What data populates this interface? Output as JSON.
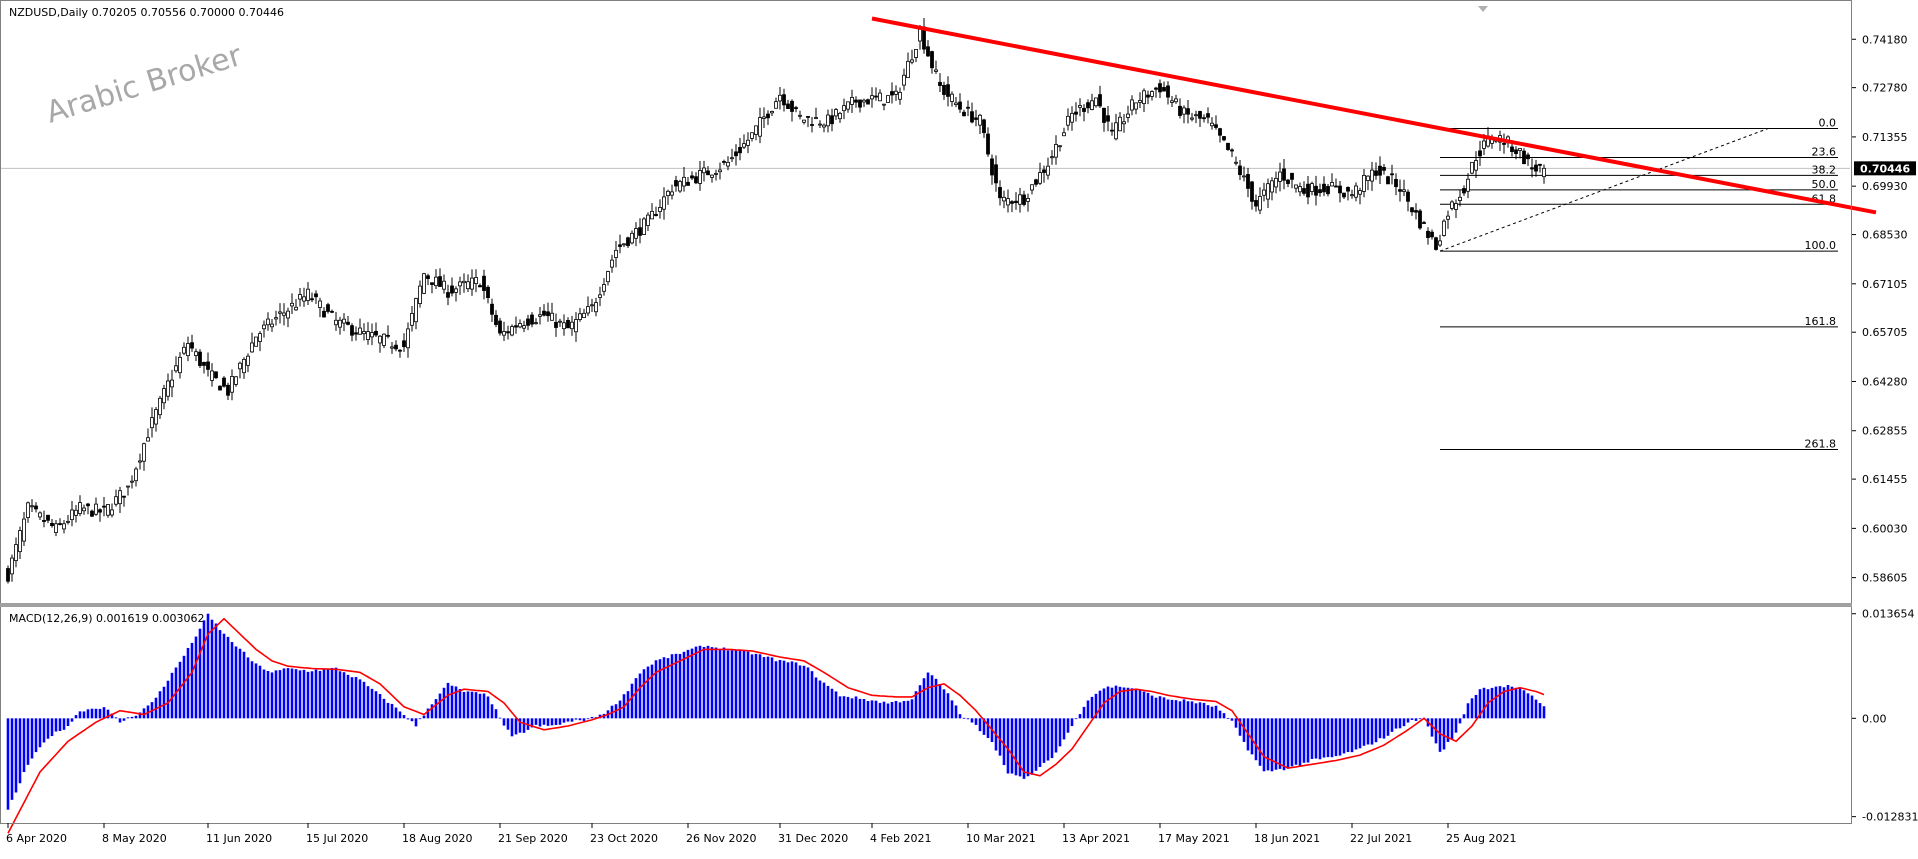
{
  "header": {
    "symbol_line": "NZDUSD,Daily  0.70205 0.70556 0.70000 0.70446"
  },
  "watermark": "Arabic Broker",
  "colors": {
    "background": "#ffffff",
    "candle": "#000000",
    "trendline": "#ff0000",
    "macd_histogram": "#0000ff",
    "macd_signal": "#ff0000",
    "price_tag_bg": "#000000",
    "price_tag_text": "#ffffff",
    "fib_line": "#000000",
    "crosshair": "#c0c0c0"
  },
  "chart_data": [
    {
      "type": "candlestick",
      "title": "NZDUSD,Daily",
      "ohlc_last": {
        "open": 0.70205,
        "high": 0.70556,
        "low": 0.7,
        "close": 0.70446
      },
      "current_price_label": "0.70446",
      "ylim": [
        0.579,
        0.752
      ],
      "y_tick_labels": [
        "0.74180",
        "0.72780",
        "0.71355",
        "0.69930",
        "0.68530",
        "0.67105",
        "0.65705",
        "0.64280",
        "0.62855",
        "0.61455",
        "0.60030",
        "0.58605"
      ],
      "y_ticks": [
        0.7418,
        0.7278,
        0.71355,
        0.6993,
        0.6853,
        0.67105,
        0.65705,
        0.6428,
        0.62855,
        0.61455,
        0.6003,
        0.58605
      ],
      "x_tick_labels": [
        "6 Apr 2020",
        "8 May 2020",
        "11 Jun 2020",
        "15 Jul 2020",
        "18 Aug 2020",
        "21 Sep 2020",
        "23 Oct 2020",
        "26 Nov 2020",
        "31 Dec 2020",
        "4 Feb 2021",
        "10 Mar 2021",
        "13 Apr 2021",
        "17 May 2021",
        "18 Jun 2021",
        "22 Jul 2021",
        "25 Aug 2021"
      ],
      "x_tick_bar_index": [
        0,
        24,
        50,
        75,
        99,
        123,
        146,
        170,
        193,
        216,
        240,
        264,
        288,
        312,
        336,
        360
      ],
      "bar_count": 385,
      "price_path": [
        [
          0,
          0.587
        ],
        [
          5,
          0.606
        ],
        [
          12,
          0.6
        ],
        [
          18,
          0.606
        ],
        [
          24,
          0.605
        ],
        [
          30,
          0.612
        ],
        [
          35,
          0.628
        ],
        [
          40,
          0.642
        ],
        [
          45,
          0.654
        ],
        [
          50,
          0.645
        ],
        [
          55,
          0.64
        ],
        [
          62,
          0.656
        ],
        [
          68,
          0.662
        ],
        [
          75,
          0.668
        ],
        [
          82,
          0.66
        ],
        [
          90,
          0.656
        ],
        [
          99,
          0.653
        ],
        [
          104,
          0.674
        ],
        [
          110,
          0.669
        ],
        [
          118,
          0.672
        ],
        [
          123,
          0.656
        ],
        [
          128,
          0.66
        ],
        [
          134,
          0.662
        ],
        [
          140,
          0.658
        ],
        [
          146,
          0.664
        ],
        [
          152,
          0.681
        ],
        [
          160,
          0.689
        ],
        [
          166,
          0.699
        ],
        [
          172,
          0.702
        ],
        [
          180,
          0.706
        ],
        [
          186,
          0.714
        ],
        [
          193,
          0.726
        ],
        [
          198,
          0.719
        ],
        [
          205,
          0.718
        ],
        [
          212,
          0.724
        ],
        [
          222,
          0.725
        ],
        [
          228,
          0.744
        ],
        [
          233,
          0.728
        ],
        [
          238,
          0.722
        ],
        [
          243,
          0.718
        ],
        [
          248,
          0.695
        ],
        [
          254,
          0.696
        ],
        [
          260,
          0.706
        ],
        [
          266,
          0.72
        ],
        [
          272,
          0.725
        ],
        [
          276,
          0.714
        ],
        [
          282,
          0.724
        ],
        [
          288,
          0.728
        ],
        [
          294,
          0.72
        ],
        [
          300,
          0.718
        ],
        [
          306,
          0.708
        ],
        [
          312,
          0.694
        ],
        [
          318,
          0.703
        ],
        [
          324,
          0.698
        ],
        [
          330,
          0.699
        ],
        [
          336,
          0.697
        ],
        [
          342,
          0.704
        ],
        [
          348,
          0.699
        ],
        [
          353,
          0.689
        ],
        [
          357,
          0.682
        ],
        [
          360,
          0.692
        ],
        [
          364,
          0.699
        ],
        [
          367,
          0.708
        ],
        [
          371,
          0.714
        ],
        [
          374,
          0.7125
        ],
        [
          378,
          0.709
        ],
        [
          381,
          0.7045
        ],
        [
          384,
          0.70446
        ]
      ],
      "trendline": {
        "start": {
          "bar": 216,
          "price": 0.7478
        },
        "end": {
          "bar": 467,
          "price": 0.6917
        }
      },
      "fibonacci": {
        "anchor_high": {
          "bar": 371,
          "price": 0.71597
        },
        "anchor_low": {
          "bar": 358,
          "price": 0.68051
        },
        "levels": [
          {
            "label": "0.0",
            "ratio": 0.0
          },
          {
            "label": "23.6",
            "ratio": 0.236
          },
          {
            "label": "38.2",
            "ratio": 0.382
          },
          {
            "label": "50.0",
            "ratio": 0.5
          },
          {
            "label": "61.8",
            "ratio": 0.618
          },
          {
            "label": "100.0",
            "ratio": 1.0
          },
          {
            "label": "161.8",
            "ratio": 1.618
          },
          {
            "label": "261.8",
            "ratio": 2.618
          }
        ],
        "dashed_link_end_bar": 440
      }
    },
    {
      "type": "bar",
      "title": "MACD(12,26,9) 0.001619 0.003062",
      "macd_value": 0.001619,
      "signal_value": 0.003062,
      "ylim": [
        -0.0134,
        0.0144
      ],
      "y_ticks": [
        0.013654,
        0.0,
        -0.012831
      ],
      "y_tick_labels": [
        "0.013654",
        "0.00",
        "-0.012831"
      ],
      "macd_path": [
        [
          0,
          -0.012
        ],
        [
          5,
          -0.006
        ],
        [
          10,
          -0.0025
        ],
        [
          15,
          -0.001
        ],
        [
          18,
          0.001
        ],
        [
          24,
          0.0015
        ],
        [
          28,
          -0.0005
        ],
        [
          32,
          0.0005
        ],
        [
          36,
          0.002
        ],
        [
          40,
          0.005
        ],
        [
          45,
          0.009
        ],
        [
          50,
          0.0135
        ],
        [
          54,
          0.011
        ],
        [
          58,
          0.009
        ],
        [
          62,
          0.007
        ],
        [
          66,
          0.006
        ],
        [
          70,
          0.0065
        ],
        [
          75,
          0.0062
        ],
        [
          82,
          0.0065
        ],
        [
          88,
          0.005
        ],
        [
          93,
          0.003
        ],
        [
          99,
          0.0005
        ],
        [
          102,
          -0.001
        ],
        [
          106,
          0.002
        ],
        [
          110,
          0.0045
        ],
        [
          114,
          0.0035
        ],
        [
          120,
          0.003
        ],
        [
          123,
          0.0
        ],
        [
          126,
          -0.0025
        ],
        [
          132,
          -0.001
        ],
        [
          136,
          -0.001
        ],
        [
          140,
          -0.0005
        ],
        [
          146,
          0.0
        ],
        [
          150,
          0.001
        ],
        [
          154,
          0.003
        ],
        [
          158,
          0.006
        ],
        [
          162,
          0.0075
        ],
        [
          168,
          0.0085
        ],
        [
          174,
          0.0095
        ],
        [
          180,
          0.009
        ],
        [
          186,
          0.0085
        ],
        [
          193,
          0.0075
        ],
        [
          199,
          0.007
        ],
        [
          203,
          0.005
        ],
        [
          208,
          0.003
        ],
        [
          214,
          0.0025
        ],
        [
          220,
          0.002
        ],
        [
          226,
          0.0025
        ],
        [
          230,
          0.006
        ],
        [
          233,
          0.0045
        ],
        [
          236,
          0.0025
        ],
        [
          238,
          0.0005
        ],
        [
          242,
          -0.001
        ],
        [
          246,
          -0.003
        ],
        [
          250,
          -0.007
        ],
        [
          254,
          -0.008
        ],
        [
          258,
          -0.0065
        ],
        [
          262,
          -0.0045
        ],
        [
          266,
          -0.001
        ],
        [
          270,
          0.0025
        ],
        [
          274,
          0.004
        ],
        [
          278,
          0.0042
        ],
        [
          282,
          0.0038
        ],
        [
          286,
          0.003
        ],
        [
          290,
          0.0025
        ],
        [
          296,
          0.0022
        ],
        [
          302,
          0.0015
        ],
        [
          306,
          -0.0005
        ],
        [
          310,
          -0.004
        ],
        [
          314,
          -0.007
        ],
        [
          320,
          -0.0065
        ],
        [
          326,
          -0.0055
        ],
        [
          332,
          -0.005
        ],
        [
          338,
          -0.004
        ],
        [
          344,
          -0.0025
        ],
        [
          350,
          -0.0005
        ],
        [
          354,
          0.0
        ],
        [
          358,
          -0.0045
        ],
        [
          362,
          -0.002
        ],
        [
          365,
          0.002
        ],
        [
          368,
          0.0038
        ],
        [
          372,
          0.0042
        ],
        [
          376,
          0.0042
        ],
        [
          379,
          0.0035
        ],
        [
          382,
          0.0025
        ],
        [
          384,
          0.0016
        ]
      ],
      "signal_path": [
        [
          0,
          -0.015
        ],
        [
          8,
          -0.007
        ],
        [
          15,
          -0.003
        ],
        [
          22,
          -0.0005
        ],
        [
          28,
          0.001
        ],
        [
          34,
          0.0005
        ],
        [
          40,
          0.002
        ],
        [
          46,
          0.006
        ],
        [
          50,
          0.011
        ],
        [
          54,
          0.013
        ],
        [
          58,
          0.011
        ],
        [
          62,
          0.009
        ],
        [
          66,
          0.0075
        ],
        [
          70,
          0.0068
        ],
        [
          76,
          0.0065
        ],
        [
          82,
          0.0064
        ],
        [
          88,
          0.006
        ],
        [
          93,
          0.0045
        ],
        [
          99,
          0.0015
        ],
        [
          104,
          0.0005
        ],
        [
          110,
          0.003
        ],
        [
          114,
          0.0038
        ],
        [
          120,
          0.0035
        ],
        [
          124,
          0.002
        ],
        [
          128,
          -0.0005
        ],
        [
          134,
          -0.0015
        ],
        [
          140,
          -0.001
        ],
        [
          146,
          -0.0002
        ],
        [
          150,
          0.0005
        ],
        [
          154,
          0.0015
        ],
        [
          158,
          0.004
        ],
        [
          162,
          0.006
        ],
        [
          168,
          0.0075
        ],
        [
          174,
          0.009
        ],
        [
          180,
          0.009
        ],
        [
          186,
          0.0088
        ],
        [
          193,
          0.008
        ],
        [
          199,
          0.0075
        ],
        [
          204,
          0.006
        ],
        [
          210,
          0.004
        ],
        [
          216,
          0.003
        ],
        [
          222,
          0.0028
        ],
        [
          226,
          0.0028
        ],
        [
          230,
          0.004
        ],
        [
          234,
          0.0045
        ],
        [
          238,
          0.003
        ],
        [
          242,
          0.001
        ],
        [
          246,
          -0.0015
        ],
        [
          250,
          -0.004
        ],
        [
          254,
          -0.007
        ],
        [
          258,
          -0.0075
        ],
        [
          262,
          -0.006
        ],
        [
          266,
          -0.004
        ],
        [
          270,
          -0.001
        ],
        [
          274,
          0.002
        ],
        [
          278,
          0.0035
        ],
        [
          282,
          0.0038
        ],
        [
          286,
          0.0035
        ],
        [
          290,
          0.003
        ],
        [
          296,
          0.0025
        ],
        [
          302,
          0.0022
        ],
        [
          306,
          0.001
        ],
        [
          310,
          -0.002
        ],
        [
          314,
          -0.005
        ],
        [
          320,
          -0.0065
        ],
        [
          326,
          -0.006
        ],
        [
          332,
          -0.0055
        ],
        [
          338,
          -0.0048
        ],
        [
          344,
          -0.0035
        ],
        [
          350,
          -0.0015
        ],
        [
          354,
          0.0
        ],
        [
          358,
          -0.002
        ],
        [
          362,
          -0.003
        ],
        [
          366,
          -0.001
        ],
        [
          370,
          0.002
        ],
        [
          374,
          0.0035
        ],
        [
          378,
          0.004
        ],
        [
          382,
          0.0035
        ],
        [
          384,
          0.0031
        ]
      ]
    }
  ]
}
